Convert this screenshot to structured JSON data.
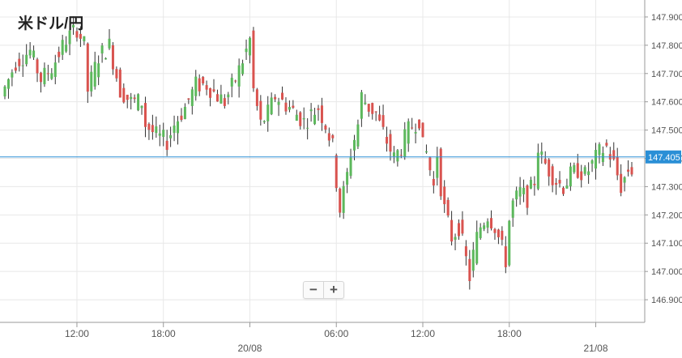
{
  "title": "米ドル/円",
  "zoom": {
    "out_label": "−",
    "in_label": "+"
  },
  "colors": {
    "up": "#5cb85c",
    "down": "#d9534f",
    "wick": "#333333",
    "current_line": "#2a8fd6",
    "grid": "#e8e8e8",
    "axis": "#999999",
    "text": "#555555"
  },
  "chart_data": {
    "type": "candlestick",
    "title": "米ドル/円",
    "ylim": [
      146.82,
      147.96
    ],
    "y_ticks": [
      147.9,
      147.8,
      147.7,
      147.6,
      147.5,
      147.4,
      147.3,
      147.2,
      147.1,
      147.0,
      146.9
    ],
    "y_tick_labels": [
      "147.900",
      "147.800",
      "147.700",
      "147.600",
      "147.500",
      "147.400",
      "147.300",
      "147.200",
      "147.100",
      "147.000",
      "146.900"
    ],
    "x_range": [
      0,
      174
    ],
    "x_ticks": [
      {
        "x": 20,
        "label": "12:00"
      },
      {
        "x": 44,
        "label": "18:00"
      },
      {
        "x": 68,
        "label": "",
        "sublabel": "20/08"
      },
      {
        "x": 92,
        "label": "06:00"
      },
      {
        "x": 116,
        "label": "12:00"
      },
      {
        "x": 140,
        "label": "18:00"
      },
      {
        "x": 164,
        "label": "",
        "sublabel": "21/08"
      }
    ],
    "current_price": 147.405,
    "current_price_label": "147.405",
    "grid": true,
    "candles": []
  }
}
